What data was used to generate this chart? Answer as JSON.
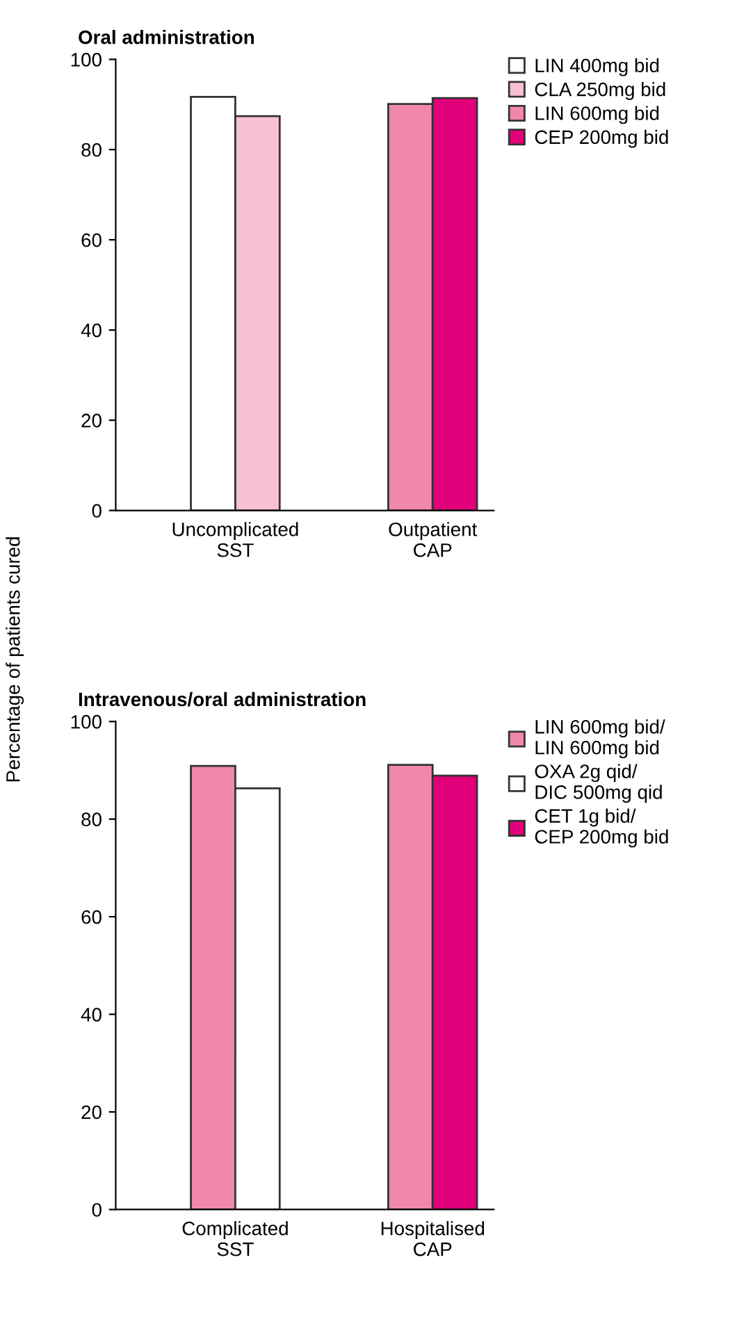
{
  "chart_data": [
    {
      "type": "bar",
      "title": "Oral administration",
      "ylabel": "Percentage of patients cured",
      "categories": [
        "Uncomplicated\nSST",
        "Outpatient\nCAP"
      ],
      "ylim": [
        0,
        100
      ],
      "yticks": [
        0,
        20,
        40,
        60,
        80,
        100
      ],
      "grid": false,
      "legend": "top right",
      "series": [
        {
          "name": "LIN 400mg bid",
          "color": "#ffffff",
          "values": [
            91.7,
            null
          ]
        },
        {
          "name": "CLA 250mg bid",
          "color": "#f7c0d4",
          "values": [
            87.4,
            null
          ]
        },
        {
          "name": "LIN 600mg bid",
          "color": "#f088aa",
          "values": [
            null,
            90.1
          ]
        },
        {
          "name": "CEP 200mg bid",
          "color": "#e2007a",
          "values": [
            null,
            91.4
          ]
        }
      ]
    },
    {
      "type": "bar",
      "title": "Intravenous/oral administration",
      "categories": [
        "Complicated\nSST",
        "Hospitalised\nCAP"
      ],
      "ylim": [
        0,
        100
      ],
      "yticks": [
        0,
        20,
        40,
        60,
        80,
        100
      ],
      "grid": false,
      "legend": "top right",
      "series": [
        {
          "name": "LIN 600mg bid/\nLIN 600mg bid",
          "color": "#f088aa",
          "values": [
            90.9,
            91.1
          ]
        },
        {
          "name": "OXA 2g qid/\nDIC 500mg qid",
          "color": "#ffffff",
          "values": [
            86.3,
            null
          ]
        },
        {
          "name": "CET 1g bid/\nCEP 200mg bid",
          "color": "#e2007a",
          "values": [
            null,
            88.9
          ]
        }
      ]
    }
  ]
}
